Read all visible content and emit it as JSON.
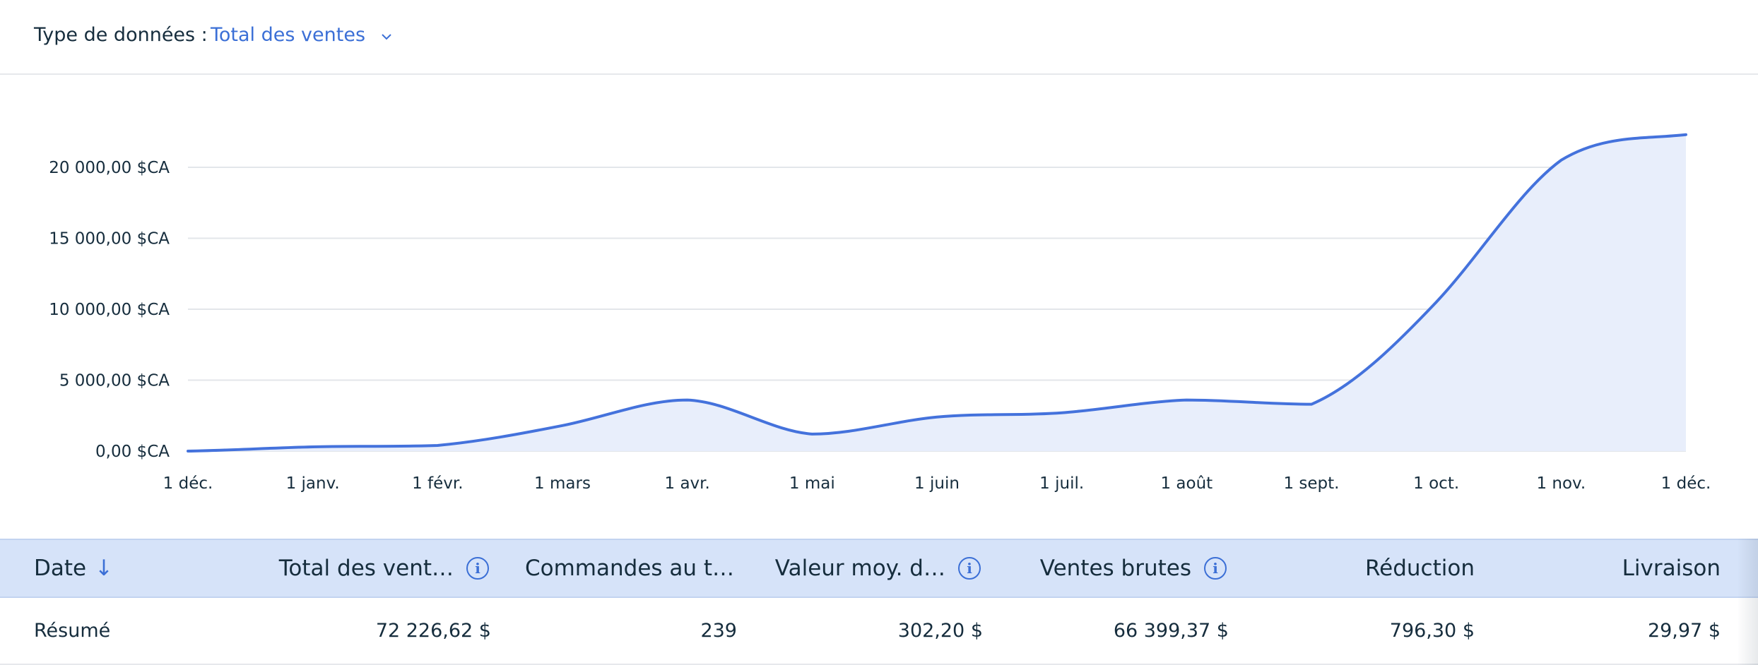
{
  "filter": {
    "label": "Type de données :",
    "value": "Total des ventes",
    "icon": "chevron-down-icon"
  },
  "chart_data": {
    "type": "area",
    "x": [
      "1 déc.",
      "1 janv.",
      "1 févr.",
      "1 mars",
      "1 avr.",
      "1 mai",
      "1 juin",
      "1 juil.",
      "1 août",
      "1 sept.",
      "1 oct.",
      "1 nov.",
      "1 déc."
    ],
    "y_tick_labels": [
      "0,00 $CA",
      "5 000,00 $CA",
      "10 000,00 $CA",
      "15 000,00 $CA",
      "20 000,00 $CA"
    ],
    "y_ticks": [
      0,
      5000,
      10000,
      15000,
      20000
    ],
    "series": [
      {
        "values": [
          0,
          300,
          400,
          1800,
          3600,
          1200,
          2400,
          2700,
          3600,
          3300,
          10500,
          20500,
          22300
        ]
      }
    ],
    "ylim": [
      0,
      22500
    ],
    "grid": true,
    "colors": {
      "line": "#4472dc",
      "fill": "#e8eefb",
      "grid": "#e3e6ea"
    }
  },
  "table": {
    "columns": [
      {
        "label": "Date",
        "sort_icon": "arrow-down-icon"
      },
      {
        "label": "Total des vent…",
        "info": true
      },
      {
        "label": "Commandes au t…"
      },
      {
        "label": "Valeur moy. d…",
        "info": true
      },
      {
        "label": "Ventes brutes",
        "info": true
      },
      {
        "label": "Réduction"
      },
      {
        "label": "Livraison"
      }
    ],
    "rows": [
      [
        "Résumé",
        "72 226,62 $",
        "239",
        "302,20 $",
        "66 399,37 $",
        "796,30 $",
        "29,97 $"
      ]
    ]
  },
  "info_glyph": "i",
  "sort_glyph": "↓"
}
